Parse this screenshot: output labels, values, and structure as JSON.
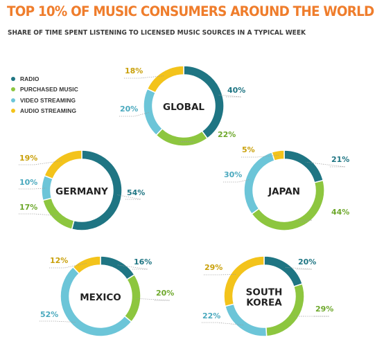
{
  "title": "TOP 10% OF MUSIC CONSUMERS AROUND THE WORLD:",
  "subtitle": "SHARE OF TIME SPENT LISTENING TO LICENSED MUSIC SOURCES IN A TYPICAL WEEK",
  "colors": {
    "radio": "#1f7583",
    "purchased_music": "#8dc63f",
    "video_streaming": "#6cc5d8",
    "audio_streaming": "#f3c31b",
    "title": "#ef7d2c",
    "label_text": "#1f7583"
  },
  "chart_data": {
    "type": "pie",
    "variant": "donut",
    "legend_position": "top-left",
    "legend": [
      {
        "key": "radio",
        "label": "RADIO"
      },
      {
        "key": "purchased_music",
        "label": "PURCHASED MUSIC"
      },
      {
        "key": "video_streaming",
        "label": "VIDEO STREAMING"
      },
      {
        "key": "audio_streaming",
        "label": "AUDIO STREAMING"
      }
    ],
    "charts": [
      {
        "name": "GLOBAL",
        "values": {
          "radio": 40,
          "purchased_music": 22,
          "video_streaming": 20,
          "audio_streaming": 18
        },
        "labels": {
          "radio": "40%",
          "purchased_music": "22%",
          "video_streaming": "20%",
          "audio_streaming": "18%"
        }
      },
      {
        "name": "GERMANY",
        "values": {
          "radio": 54,
          "purchased_music": 17,
          "video_streaming": 10,
          "audio_streaming": 19
        },
        "labels": {
          "radio": "54%",
          "purchased_music": "17%",
          "video_streaming": "10%",
          "audio_streaming": "19%"
        }
      },
      {
        "name": "JAPAN",
        "values": {
          "radio": 21,
          "purchased_music": 44,
          "video_streaming": 30,
          "audio_streaming": 5
        },
        "labels": {
          "radio": "21%",
          "purchased_music": "44%",
          "video_streaming": "30%",
          "audio_streaming": "5%"
        }
      },
      {
        "name": "MEXICO",
        "values": {
          "radio": 16,
          "purchased_music": 20,
          "video_streaming": 52,
          "audio_streaming": 12
        },
        "labels": {
          "radio": "16%",
          "purchased_music": "20%",
          "video_streaming": "52%",
          "audio_streaming": "12%"
        }
      },
      {
        "name": "SOUTH KOREA",
        "name_lines": [
          "SOUTH",
          "KOREA"
        ],
        "values": {
          "radio": 20,
          "purchased_music": 29,
          "video_streaming": 22,
          "audio_streaming": 29
        },
        "labels": {
          "radio": "20%",
          "purchased_music": "29%",
          "video_streaming": "22%",
          "audio_streaming": "29%"
        }
      }
    ]
  }
}
